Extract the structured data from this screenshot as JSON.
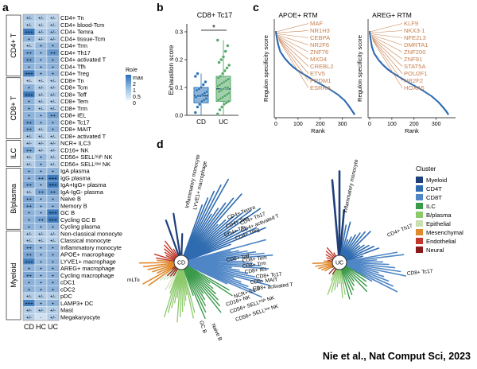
{
  "panels": {
    "a": "a",
    "b": "b",
    "c": "c",
    "d": "d"
  },
  "heatmap": {
    "conditions": [
      "CD",
      "HC",
      "UC"
    ],
    "groups": [
      {
        "name": "CD4+ T",
        "rows": [
          {
            "label": "CD4+ Tn",
            "cells": [
              "+/-",
              "+/-",
              "+/-"
            ],
            "vals": [
              0.35,
              0.3,
              0.25
            ]
          },
          {
            "label": "CD4+ blood-Tcm",
            "cells": [
              "+/-",
              "+/-",
              "+/-"
            ],
            "vals": [
              0.3,
              0.25,
              0.3
            ]
          },
          {
            "label": "CD4+ Temra",
            "cells": [
              "+++",
              "+/-",
              "+/-"
            ],
            "vals": [
              0.9,
              0.35,
              0.4
            ]
          },
          {
            "label": "CD4+ tissue-Tcm",
            "cells": [
              "+",
              "+/-",
              "+/-"
            ],
            "vals": [
              0.5,
              0.3,
              0.35
            ]
          },
          {
            "label": "CD4+ Trm",
            "cells": [
              "+/-",
              "+",
              "+"
            ],
            "vals": [
              0.3,
              0.45,
              0.5
            ]
          },
          {
            "label": "CD4+ Th17",
            "cells": [
              "++",
              "+",
              "++"
            ],
            "vals": [
              0.6,
              0.45,
              0.7
            ]
          },
          {
            "label": "CD4+ activated T",
            "cells": [
              "++",
              "+",
              "+"
            ],
            "vals": [
              0.65,
              0.45,
              0.55
            ]
          },
          {
            "label": "CD4+ Tfh",
            "cells": [
              "+",
              "+",
              "+"
            ],
            "vals": [
              0.5,
              0.45,
              0.5
            ]
          },
          {
            "label": "CD4+ Treg",
            "cells": [
              "+++",
              "+",
              "+"
            ],
            "vals": [
              0.85,
              0.45,
              0.5
            ]
          }
        ]
      },
      {
        "name": "CD8+ T",
        "rows": [
          {
            "label": "CD8+ Tn",
            "cells": [
              "+/-",
              "+/-",
              "+/-"
            ],
            "vals": [
              0.25,
              0.25,
              0.3
            ]
          },
          {
            "label": "CD8+ Tcm",
            "cells": [
              "+",
              "+/-",
              "+/-"
            ],
            "vals": [
              0.5,
              0.3,
              0.3
            ]
          },
          {
            "label": "CD8+ Teff",
            "cells": [
              "+++",
              "+/-",
              "+/-"
            ],
            "vals": [
              0.9,
              0.3,
              0.35
            ]
          },
          {
            "label": "CD8+ Tem",
            "cells": [
              "+",
              "+/-",
              "+/-"
            ],
            "vals": [
              0.5,
              0.3,
              0.3
            ]
          },
          {
            "label": "CD8+ Trm",
            "cells": [
              "+",
              "+/-",
              "+/-"
            ],
            "vals": [
              0.5,
              0.3,
              0.35
            ]
          },
          {
            "label": "CD8+ IEL",
            "cells": [
              "+",
              "+",
              "++"
            ],
            "vals": [
              0.5,
              0.45,
              0.65
            ]
          },
          {
            "label": "CD8+ Tc17",
            "cells": [
              "++",
              "+",
              "+"
            ],
            "vals": [
              0.65,
              0.45,
              0.5
            ]
          },
          {
            "label": "CD8+ MAIT",
            "cells": [
              "++",
              "+/-",
              "+"
            ],
            "vals": [
              0.6,
              0.3,
              0.5
            ]
          },
          {
            "label": "CD8+ activated T",
            "cells": [
              "+/-",
              "+/-",
              "+/-"
            ],
            "vals": [
              0.35,
              0.3,
              0.3
            ]
          }
        ]
      },
      {
        "name": "ILC",
        "rows": [
          {
            "label": "NCR+ ILC3",
            "cells": [
              "+/-",
              "+/-",
              "+/-"
            ],
            "vals": [
              0.3,
              0.3,
              0.3
            ]
          },
          {
            "label": "CD16+ NK",
            "cells": [
              "++",
              "+/-",
              "+/-"
            ],
            "vals": [
              0.6,
              0.3,
              0.3
            ]
          },
          {
            "label": "CD56+ SELLʰⁱᵍʰ NK",
            "cells": [
              "+/-",
              "+",
              "+/-"
            ],
            "vals": [
              0.3,
              0.45,
              0.3
            ]
          },
          {
            "label": "CD56+ SELLˡᵒʷ NK",
            "cells": [
              "+/-",
              "+",
              "+/-"
            ],
            "vals": [
              0.3,
              0.45,
              0.3
            ]
          }
        ]
      },
      {
        "name": "B/plasma",
        "rows": [
          {
            "label": "IgA plasma",
            "cells": [
              "+",
              "+",
              "+"
            ],
            "vals": [
              0.5,
              0.45,
              0.5
            ]
          },
          {
            "label": "IgG plasma",
            "cells": [
              "+",
              "++",
              "+++"
            ],
            "vals": [
              0.5,
              0.6,
              0.9
            ]
          },
          {
            "label": "IgA+IgG+ plasma",
            "cells": [
              "++",
              "+",
              "+++"
            ],
            "vals": [
              0.6,
              0.45,
              0.9
            ]
          },
          {
            "label": "IgA-IgG- plasma",
            "cells": [
              "+/-",
              "++",
              "++"
            ],
            "vals": [
              0.3,
              0.6,
              0.65
            ]
          },
          {
            "label": "Naive B",
            "cells": [
              "++",
              "+",
              "+"
            ],
            "vals": [
              0.6,
              0.45,
              0.5
            ]
          },
          {
            "label": "Memory B",
            "cells": [
              "++",
              "+",
              "+"
            ],
            "vals": [
              0.6,
              0.45,
              0.5
            ]
          },
          {
            "label": "GC B",
            "cells": [
              "+",
              "+",
              "+++"
            ],
            "vals": [
              0.5,
              0.45,
              0.9
            ]
          },
          {
            "label": "Cycling GC B",
            "cells": [
              "+",
              "++",
              "+++"
            ],
            "vals": [
              0.5,
              0.6,
              0.9
            ]
          },
          {
            "label": "Cycling plasma",
            "cells": [
              "+",
              "+",
              "+"
            ],
            "vals": [
              0.5,
              0.45,
              0.5
            ]
          }
        ]
      },
      {
        "name": "Myeloid",
        "rows": [
          {
            "label": "Non-classical monocyte",
            "cells": [
              "+/-",
              "+/-",
              "+/-"
            ],
            "vals": [
              0.3,
              0.3,
              0.3
            ]
          },
          {
            "label": "Classical monocyte",
            "cells": [
              "+/-",
              "+/-",
              "+/-"
            ],
            "vals": [
              0.3,
              0.3,
              0.3
            ]
          },
          {
            "label": "Inflammatory monocyte",
            "cells": [
              "++",
              "+",
              "+"
            ],
            "vals": [
              0.6,
              0.45,
              0.5
            ]
          },
          {
            "label": "APOE+ macrophage",
            "cells": [
              "++",
              "+",
              "+"
            ],
            "vals": [
              0.6,
              0.45,
              0.5
            ]
          },
          {
            "label": "LYVE1+ macrophage",
            "cells": [
              "+++",
              "+",
              "+"
            ],
            "vals": [
              0.85,
              0.45,
              0.5
            ]
          },
          {
            "label": "AREG+ macrophage",
            "cells": [
              "+",
              "+",
              "+"
            ],
            "vals": [
              0.5,
              0.45,
              0.5
            ]
          },
          {
            "label": "Cycling macrophage",
            "cells": [
              "++",
              "+",
              "+"
            ],
            "vals": [
              0.6,
              0.45,
              0.5
            ]
          },
          {
            "label": "cDC1",
            "cells": [
              "+",
              "+",
              "+"
            ],
            "vals": [
              0.5,
              0.45,
              0.5
            ]
          },
          {
            "label": "cDC2",
            "cells": [
              "+",
              "+",
              "+"
            ],
            "vals": [
              0.5,
              0.45,
              0.5
            ]
          },
          {
            "label": "pDC",
            "cells": [
              "+/-",
              "+/-",
              "+/-"
            ],
            "vals": [
              0.3,
              0.3,
              0.3
            ]
          },
          {
            "label": "LAMP3+ DC",
            "cells": [
              "+++",
              "+",
              "+"
            ],
            "vals": [
              0.85,
              0.45,
              0.5
            ]
          },
          {
            "label": "Mast",
            "cells": [
              "+/-",
              "+/-",
              "+/-"
            ],
            "vals": [
              0.3,
              0.3,
              0.3
            ]
          },
          {
            "label": "Megakaryocyte",
            "cells": [
              "+/-",
              "-",
              "+/-"
            ],
            "vals": [
              0.3,
              0.15,
              0.3
            ]
          }
        ]
      }
    ],
    "legend": {
      "title": "Ro/e",
      "labels": [
        "max",
        "2",
        "1",
        "0.5",
        "0"
      ]
    }
  },
  "boxplot": {
    "title": "CD8+ Tc17",
    "ylabel": "Exhaustion score",
    "categories": [
      "CD",
      "UC"
    ],
    "yticks": [
      "0.0",
      "0.1",
      "0.2",
      "0.3"
    ],
    "significance": "*",
    "colors": [
      "#2e75b6",
      "#55a868"
    ]
  },
  "chart_data": [
    {
      "type": "box",
      "title": "CD8+ Tc17",
      "ylabel": "Exhaustion score",
      "xlabel": "",
      "ylim": [
        0,
        0.3
      ],
      "categories": [
        "CD",
        "UC"
      ],
      "series": [
        {
          "name": "CD",
          "q1": 0.045,
          "median": 0.07,
          "q3": 0.1,
          "whisker_low": 0.0,
          "whisker_high": 0.15,
          "points": [
            0.01,
            0.03,
            0.04,
            0.05,
            0.055,
            0.06,
            0.065,
            0.07,
            0.07,
            0.075,
            0.08,
            0.085,
            0.09,
            0.095,
            0.1,
            0.11,
            0.12,
            0.14,
            0.15
          ]
        },
        {
          "name": "UC",
          "q1": 0.05,
          "median": 0.095,
          "q3": 0.14,
          "whisker_low": 0.0,
          "whisker_high": 0.27,
          "points": [
            0.005,
            0.02,
            0.03,
            0.04,
            0.045,
            0.05,
            0.055,
            0.06,
            0.065,
            0.07,
            0.075,
            0.08,
            0.085,
            0.09,
            0.095,
            0.1,
            0.1,
            0.105,
            0.11,
            0.115,
            0.12,
            0.125,
            0.13,
            0.135,
            0.14,
            0.15,
            0.16,
            0.17,
            0.18,
            0.19,
            0.2,
            0.21,
            0.23,
            0.25,
            0.27
          ]
        }
      ],
      "annotation": "*"
    },
    {
      "type": "line",
      "title": "APOE+ RTM",
      "xlabel": "Rank",
      "ylabel": "Regulon specificity score",
      "xlim": [
        0,
        380
      ],
      "xticks": [
        0,
        100,
        200,
        300
      ],
      "x": [
        0,
        5,
        10,
        20,
        40,
        60,
        80,
        100,
        130,
        160,
        200,
        240,
        280,
        310,
        330,
        345,
        355
      ],
      "y": [
        1.0,
        0.92,
        0.85,
        0.76,
        0.68,
        0.62,
        0.57,
        0.53,
        0.48,
        0.43,
        0.37,
        0.31,
        0.24,
        0.17,
        0.1,
        0.04,
        0.0
      ],
      "highlighted": [
        "MAF",
        "NR1H3",
        "CEBPA",
        "NR2F6",
        "ZNF76",
        "MXD4",
        "CREBL2",
        "ETV5",
        "PRDM1",
        "ESRRA"
      ]
    },
    {
      "type": "line",
      "title": "AREG+ RTM",
      "xlabel": "Rank",
      "ylabel": "Regulon specificity score",
      "xlim": [
        0,
        380
      ],
      "xticks": [
        0,
        100,
        200,
        300
      ],
      "x": [
        0,
        5,
        10,
        20,
        40,
        60,
        80,
        100,
        130,
        160,
        200,
        240,
        280,
        310,
        330,
        345,
        355
      ],
      "y": [
        1.0,
        0.9,
        0.82,
        0.74,
        0.66,
        0.6,
        0.55,
        0.51,
        0.46,
        0.41,
        0.35,
        0.29,
        0.22,
        0.15,
        0.09,
        0.04,
        0.0
      ],
      "highlighted": [
        "KLF9",
        "NKX3-1",
        "NFE2L3",
        "DMRTA1",
        "ZNF200",
        "ZNF91",
        "STAT5A",
        "POU2F1",
        "NR2F2",
        "HOXA5"
      ]
    }
  ],
  "rss": [
    {
      "title": "APOE+ RTM",
      "ylabel": "Regulon specificity score",
      "xlabel": "Rank",
      "tfs": [
        "MAF",
        "NR1H3",
        "CEBPA",
        "NR2F6",
        "ZNF76",
        "MXD4",
        "CREBL2",
        "ETV5",
        "PRDM1",
        "ESRRA"
      ],
      "xticks": [
        "0",
        "100",
        "200",
        "300"
      ]
    },
    {
      "title": "AREG+ RTM",
      "ylabel": "Regulon specificity score",
      "xlabel": "Rank",
      "tfs": [
        "KLF9",
        "NKX3-1",
        "NFE2L3",
        "DMRTA1",
        "ZNF200",
        "ZNF91",
        "STAT5A",
        "POU2F1",
        "NR2F2",
        "HOXA5"
      ],
      "xticks": [
        "0",
        "100",
        "200",
        "300"
      ]
    }
  ],
  "network": {
    "hubs": [
      "CD",
      "UC"
    ],
    "cd_labels": {
      "myeloid": [
        "Inflammatory monocyte",
        "LYVE1+ macrophage"
      ],
      "cd4": [
        "CD4+ Temra",
        "CD4+ Trm",
        "CD4+ Th17",
        "CD4+ activated T",
        "CD4+ Tfh",
        "CD4+ Treg"
      ],
      "cd8": [
        "CD8+ Teff",
        "CD8+ Tem",
        "CD8+ Trm",
        "CD8+ IEL",
        "CD8+ Tc17",
        "CD8+ MAIT",
        "CD8+ activated T"
      ],
      "ilc": [
        "NCR+ ILC3",
        "CD16+ NK",
        "CD56+ SELLʰⁱᵍʰ NK",
        "CD56+ SELLˡᵒʷ NK"
      ],
      "b": [
        "GC B",
        "Naive B"
      ],
      "other": [
        "mLTo"
      ]
    },
    "uc_labels": {
      "myeloid": [
        "Inflammatory monocyte"
      ],
      "cd4": [
        "CD4+ Th17"
      ],
      "cd8": [
        "CD8+ Tc17"
      ]
    },
    "legend": {
      "title": "Cluster",
      "items": [
        {
          "label": "Myeloid",
          "color": "#1f3f7a"
        },
        {
          "label": "CD4T",
          "color": "#2e6bb0"
        },
        {
          "label": "CD8T",
          "color": "#4f86c6"
        },
        {
          "label": "ILC",
          "color": "#3a9a4a"
        },
        {
          "label": "B/plasma",
          "color": "#8cc96b"
        },
        {
          "label": "Epithelial",
          "color": "#c9dfb0"
        },
        {
          "label": "Mesenchymal",
          "color": "#e08a2e"
        },
        {
          "label": "Endothelial",
          "color": "#c0392b"
        },
        {
          "label": "Neural",
          "color": "#8b1a1a"
        }
      ]
    }
  },
  "citation": "Nie et al., Nat Comput Sci, 2023"
}
